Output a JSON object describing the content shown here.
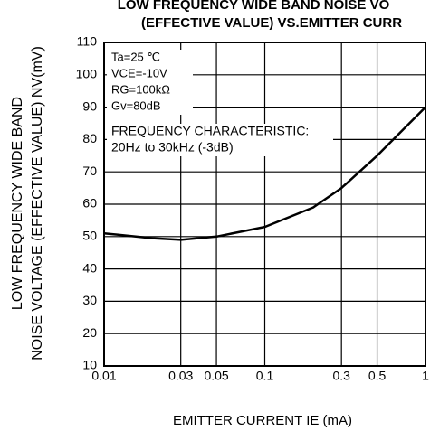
{
  "chart_data": {
    "type": "line",
    "title": [
      "LOW FREQUENCY WIDE BAND NOISE VO",
      "(EFFECTIVE VALUE) VS.EMITTER CURR"
    ],
    "ylabel": [
      "LOW FREQUENCY WIDE BAND",
      "NOISE VOLTAGE (EFFECTIVE VALUE) NV(mV)"
    ],
    "xlabel": "EMITTER CURRENT IE (mA)",
    "annotations": [
      "Ta=25 ℃",
      "VCE=-10V",
      "RG=100kΩ",
      "Gv=80dB",
      "FREQUENCY CHARACTERISTIC:",
      "20Hz to 30kHz  (-3dB)"
    ],
    "x": [
      0.01,
      0.02,
      0.03,
      0.05,
      0.1,
      0.2,
      0.3,
      0.5,
      1
    ],
    "series": [
      {
        "color": "#000000",
        "values": [
          51,
          49.5,
          49,
          50,
          53,
          59,
          65,
          75,
          90
        ]
      }
    ],
    "xscale": "log",
    "xlim": [
      0.01,
      1
    ],
    "xticks": [
      0.01,
      0.03,
      0.05,
      0.1,
      0.3,
      0.5,
      1
    ],
    "ylim": [
      10,
      110
    ],
    "yticks": [
      10,
      20,
      30,
      40,
      50,
      60,
      70,
      80,
      90,
      100,
      110
    ],
    "grid": true
  }
}
